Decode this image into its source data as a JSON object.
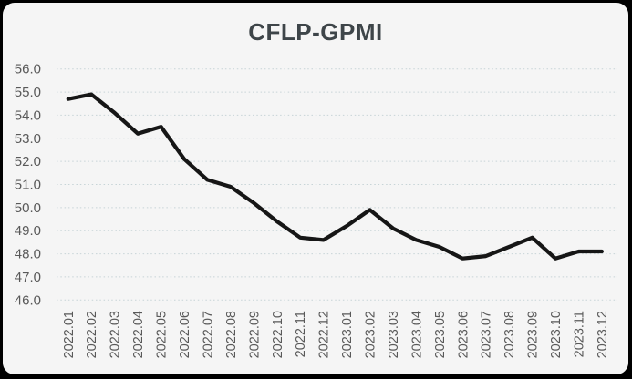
{
  "window": {
    "background": "#000000",
    "panel_background": "#f5f5f5"
  },
  "chart_data": {
    "type": "line",
    "title": "CFLP-GPMI",
    "categories": [
      "2022.01",
      "2022.02",
      "2022.03",
      "2022.04",
      "2022.05",
      "2022.06",
      "2022.07",
      "2022.08",
      "2022.09",
      "2022.10",
      "2022.11",
      "2022.12",
      "2023.01",
      "2023.02",
      "2023.03",
      "2023.04",
      "2023.05",
      "2023.06",
      "2023.07",
      "2023.08",
      "2023.09",
      "2023.10",
      "2023.11",
      "2023.12"
    ],
    "series": [
      {
        "name": "CFLP-GPMI",
        "values": [
          54.7,
          54.9,
          54.1,
          53.2,
          53.5,
          52.1,
          51.2,
          50.9,
          50.2,
          49.4,
          48.7,
          48.6,
          49.2,
          49.9,
          49.1,
          48.6,
          48.3,
          47.8,
          47.9,
          48.3,
          48.7,
          47.8,
          48.1,
          48.1
        ]
      }
    ],
    "xlabel": "",
    "ylabel": "",
    "ylim": [
      46.0,
      56.0
    ],
    "ytick_step": 1.0,
    "ytick_decimals": 1,
    "grid": "horizontal-dotted",
    "legend": "none",
    "x_labels_rotation_deg": -90,
    "colors": {
      "line": "#161616",
      "gridline": "#c7d4d7",
      "axis_labels": "#595959",
      "title": "#3e4549"
    }
  }
}
